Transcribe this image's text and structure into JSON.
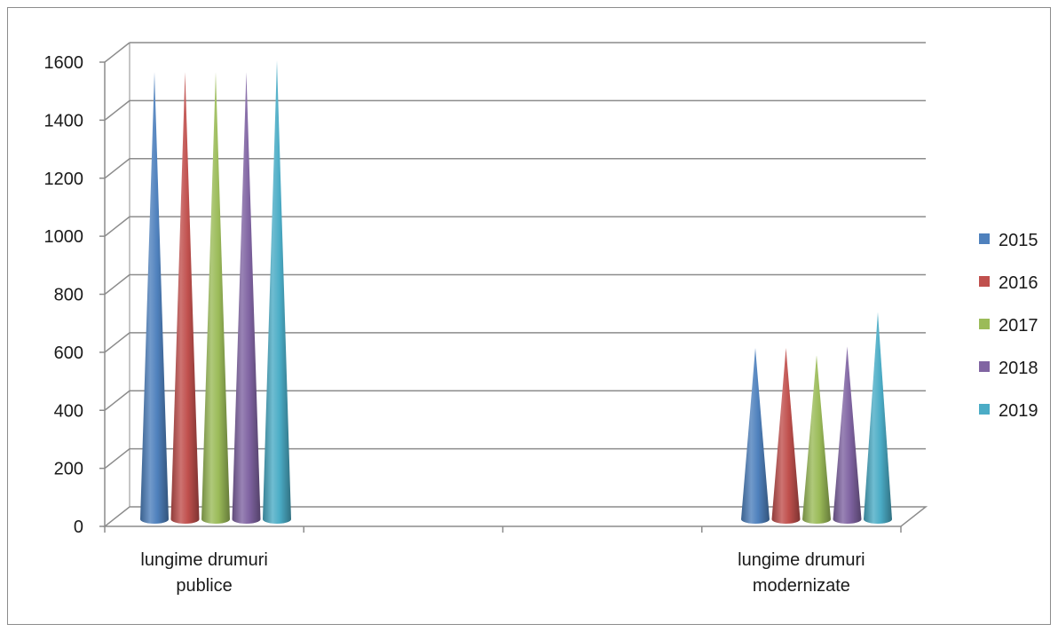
{
  "chart_data": {
    "type": "bar",
    "shape": "3d-cone",
    "title": "",
    "xlabel": "",
    "ylabel": "",
    "ylim": [
      0,
      1600
    ],
    "yticks": [
      0,
      200,
      400,
      600,
      800,
      1000,
      1200,
      1400,
      1600
    ],
    "grid": true,
    "legend_position": "right",
    "categories": [
      [
        "lungime drumuri",
        "publice"
      ],
      [
        "lungime drumuri",
        "modernizate"
      ]
    ],
    "series": [
      {
        "name": "2015",
        "color": "#4f81bd",
        "values": [
          1565,
          615
        ]
      },
      {
        "name": "2016",
        "color": "#c0504d",
        "values": [
          1565,
          615
        ]
      },
      {
        "name": "2017",
        "color": "#9bbb59",
        "values": [
          1565,
          590
        ]
      },
      {
        "name": "2018",
        "color": "#8064a2",
        "values": [
          1565,
          620
        ]
      },
      {
        "name": "2019",
        "color": "#4bacc6",
        "values": [
          1605,
          738
        ]
      }
    ]
  }
}
